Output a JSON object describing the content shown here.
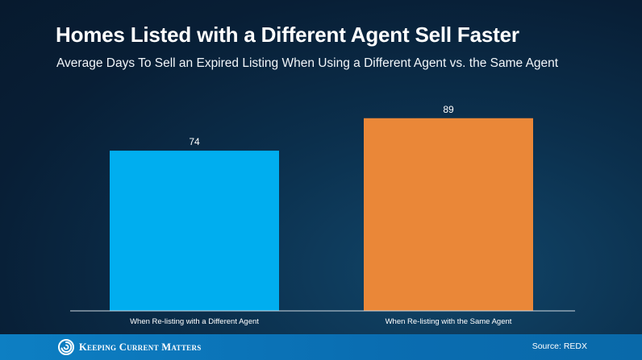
{
  "chart_data": {
    "type": "bar",
    "title": "Homes Listed with a Different Agent Sell Faster",
    "subtitle": "Average Days To Sell an Expired Listing When Using a Different Agent vs. the Same Agent",
    "categories": [
      "When Re-listing with a Different Agent",
      "When Re-listing with the Same Agent"
    ],
    "values": [
      74,
      89
    ],
    "data_labels": [
      "74",
      "89"
    ],
    "bar_colors": [
      "#00aeef",
      "#ea8738"
    ],
    "xlabel": "",
    "ylabel": "",
    "ylim": [
      0,
      100
    ],
    "grid": false,
    "legend": "none"
  },
  "footer": {
    "brand": "Keeping Current Matters",
    "source": "Source: REDX",
    "background": "#0b74b8"
  }
}
